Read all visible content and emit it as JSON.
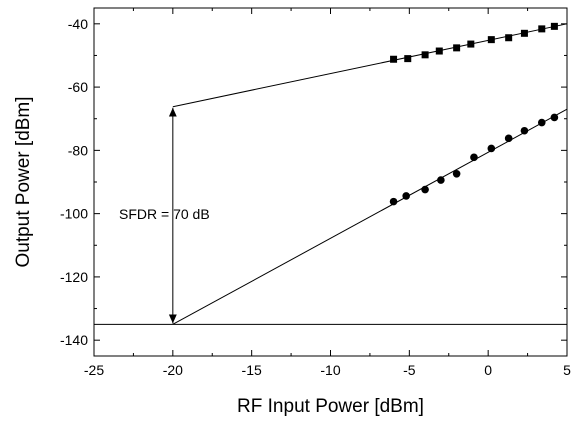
{
  "chart_data": {
    "type": "scatter",
    "title": "",
    "xlabel": "RF Input Power [dBm]",
    "ylabel": "Output Power [dBm]",
    "xlim": [
      -25,
      5
    ],
    "ylim": [
      -145,
      -35
    ],
    "xticks": [
      -25,
      -20,
      -15,
      -10,
      -5,
      0,
      5
    ],
    "yticks": [
      -140,
      -120,
      -100,
      -80,
      -60,
      -40
    ],
    "grid": false,
    "legend": "none",
    "series": [
      {
        "marker": "square",
        "x": [
          -6.0,
          -5.1,
          -4.0,
          -3.1,
          -2.0,
          -1.1,
          0.2,
          1.3,
          2.3,
          3.4,
          4.2
        ],
        "y": [
          -51.2,
          -51.0,
          -49.8,
          -48.6,
          -47.6,
          -46.4,
          -45.0,
          -44.4,
          -43.0,
          -41.6,
          -40.8
        ]
      },
      {
        "marker": "circle",
        "x": [
          -6.0,
          -5.2,
          -4.0,
          -3.0,
          -2.0,
          -0.9,
          0.2,
          1.3,
          2.3,
          3.4,
          4.2
        ],
        "y": [
          -96.2,
          -94.4,
          -92.4,
          -89.4,
          -87.4,
          -82.2,
          -79.4,
          -76.2,
          -73.8,
          -71.2,
          -69.6
        ]
      }
    ],
    "fits": [
      {
        "x": [
          -20,
          5
        ],
        "y": [
          -66.2,
          -40.0
        ]
      },
      {
        "x": [
          -20,
          5
        ],
        "y": [
          -135.0,
          -67.0
        ]
      }
    ],
    "noise_floor": -135,
    "annotation": {
      "text": "SFDR = 70 dB",
      "x": -20,
      "y_from": -66.2,
      "y_to": -135
    }
  }
}
